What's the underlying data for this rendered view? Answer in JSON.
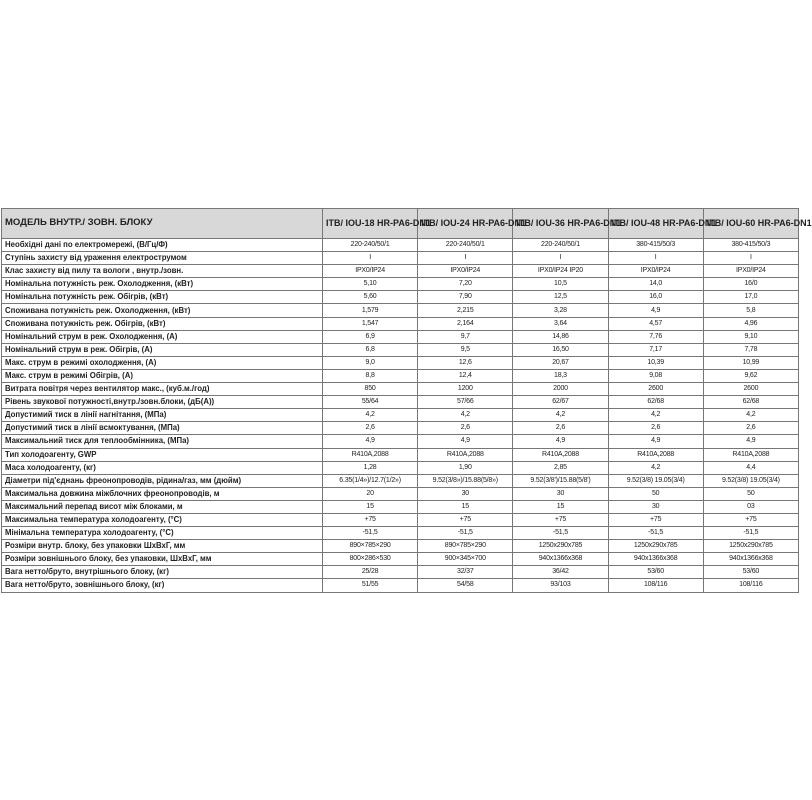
{
  "table": {
    "header": [
      "МОДЕЛЬ ВНУТР./ ЗОВН. БЛОКУ",
      "ITB/ IOU-18 HR-PA6-DN1",
      "ITB/ IOU-24 HR-PA6-DN1",
      "ITB/ IOU-36 HR-PA6-DN1",
      "ITB/ IOU-48 HR-PA6-DN1",
      "ITB/ IOU-60 HR-PA6-DN1"
    ],
    "rows": [
      [
        "Необхідні дані по електромережі, (В/Гц/Ф)",
        "220-240/50/1",
        "220-240/50/1",
        "220-240/50/1",
        "380-415/50/3",
        "380-415/50/3"
      ],
      [
        "Ступінь захисту від ураження електрострумом",
        "I",
        "I",
        "I",
        "I",
        "I"
      ],
      [
        "Клас захисту від пилу та вологи , внутр./зовн.",
        "IPX0/IP24",
        "IPX0/IP24",
        "IPX0/IP24 IP20",
        "IPX0/IP24",
        "IPX0/IP24"
      ],
      [
        "Номінальна потужність реж. Охолодження, (кВт)",
        "5,10",
        "7,20",
        "10,5",
        "14,0",
        "16/0"
      ],
      [
        "Номінальна потужність реж. Обігрів, (кВт)",
        "5,60",
        "7,90",
        "12,5",
        "16,0",
        "17,0"
      ],
      [
        "Споживана потужність реж. Охолодження, (кВт)",
        "1,579",
        "2,215",
        "3,28",
        "4,9",
        "5,8"
      ],
      [
        "Споживана потужність реж. Обігрів, (кВт)",
        "1,547",
        "2,164",
        "3,64",
        "4,57",
        "4,96"
      ],
      [
        "Номінальний струм в реж. Охолодження, (А)",
        "6,9",
        "9,7",
        "14,86",
        "7,76",
        "9,10"
      ],
      [
        "Номінальний струм в реж. Обігрів, (А)",
        "6,8",
        "9,5",
        "16,50",
        "7,17",
        "7,78"
      ],
      [
        "Макс. струм в режимі охолодження, (А)",
        "9,0",
        "12,6",
        "20,67",
        "10,39",
        "10,99"
      ],
      [
        "Макс. струм в режимі Обігрів, (А)",
        "8,8",
        "12,4",
        "18,3",
        "9,08",
        "9,62"
      ],
      [
        "Витрата повітря через вентилятор макс., (куб.м./год)",
        "850",
        "1200",
        "2000",
        "2600",
        "2600"
      ],
      [
        "Рівень звукової потужності,внутр./зовн.блоки, (дБ(А))",
        "55/64",
        "57/66",
        "62/67",
        "62/68",
        "62/68"
      ],
      [
        "Допустимий тиск в лінії нагнітання, (МПа)",
        "4,2",
        "4,2",
        "4,2",
        "4,2",
        "4,2"
      ],
      [
        "Допустимий тиск в лінії всмоктування, (МПа)",
        "2,6",
        "2,6",
        "2,6",
        "2,6",
        "2,6"
      ],
      [
        "Максимальний тиск для теплообмінника, (МПа)",
        "4,9",
        "4,9",
        "4,9",
        "4,9",
        "4,9"
      ],
      [
        "Тип холодоагенту, GWP",
        "R410A,2088",
        "R410A,2088",
        "R410A,2088",
        "R410A,2088",
        "R410A,2088"
      ],
      [
        "Маса холодоагенту, (кг)",
        "1,28",
        "1,90",
        "2,85",
        "4,2",
        "4,4"
      ],
      [
        "Діаметри під'єднань фреонопроводів, рідина/газ, мм (дюйм)",
        "6.35(1/4»)/12.7(1/2»)",
        "9.52(3/8»)/15.88(5/8»)",
        "9.52(3/8')/15.88(5/8')",
        "9.52(3/8) 19.05(3/4)",
        "9.52(3/8) 19.05(3/4)"
      ],
      [
        "Максимальна довжина міжблочних фреонопроводів, м",
        "20",
        "30",
        "30",
        "50",
        "50"
      ],
      [
        "Максимальний перепад висот між блоками, м",
        "15",
        "15",
        "15",
        "30",
        "03"
      ],
      [
        "Максимальна температура холодоагенту, (°C)",
        "+75",
        "+75",
        "+75",
        "+75",
        "+75"
      ],
      [
        "Мінімальна температура холодоагенту, (°C)",
        "-51,5",
        "-51,5",
        "-51,5",
        "-51,5",
        "-51,5"
      ],
      [
        "Розміри внутр. блоку, без упаковки ШхВхГ, мм",
        "890×785×290",
        "890×785×290",
        "1250x290x785",
        "1250x290x785",
        "1250x290x785"
      ],
      [
        "Розміри зовнішнього блоку, без упаковки, ШхВхГ, мм",
        "800×286×530",
        "900×345×700",
        "940x1366x368",
        "940x1366x368",
        "940x1366x368"
      ],
      [
        "Вага нетто/бруто, внутрішнього блоку, (кг)",
        "25/28",
        "32/37",
        "36/42",
        "53/60",
        "53/60"
      ],
      [
        "Вага нетто/бруто, зовнішнього блоку, (кг)",
        "51/55",
        "54/58",
        "93/103",
        "108/116",
        "108/116"
      ]
    ]
  }
}
